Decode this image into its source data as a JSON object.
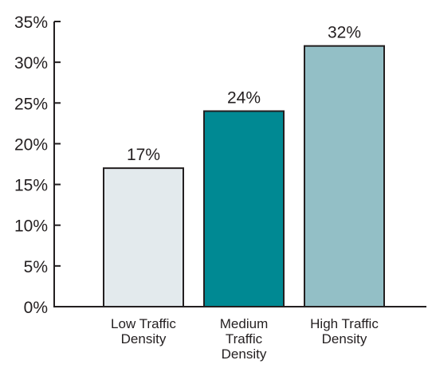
{
  "chart_data": {
    "type": "bar",
    "categories": [
      [
        "Low Traffic",
        "Density"
      ],
      [
        "Medium",
        "Traffic",
        "Density"
      ],
      [
        "High Traffic",
        "Density"
      ]
    ],
    "values": [
      17,
      24,
      32
    ],
    "data_labels": [
      "17%",
      "24%",
      "32%"
    ],
    "colors": [
      "#e3eaed",
      "#008993",
      "#93bfc6"
    ],
    "ylim": [
      0,
      35
    ],
    "yticks": [
      0,
      5,
      10,
      15,
      20,
      25,
      30,
      35
    ],
    "ytick_labels": [
      "0%",
      "5%",
      "10%",
      "15%",
      "20%",
      "25%",
      "30%",
      "35%"
    ],
    "title": "",
    "xlabel": "",
    "ylabel": "",
    "grid": false,
    "legend": "none"
  }
}
